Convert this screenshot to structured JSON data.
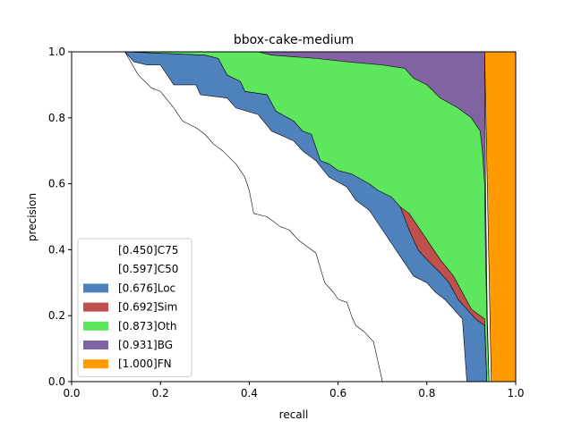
{
  "chart_data": {
    "type": "area",
    "title": "bbox-cake-medium",
    "xlabel": "recall",
    "ylabel": "precision",
    "xlim": [
      0,
      1
    ],
    "ylim": [
      0,
      1
    ],
    "xticks": [
      "0.0",
      "0.2",
      "0.4",
      "0.6",
      "0.8",
      "1.0"
    ],
    "yticks": [
      "0.0",
      "0.2",
      "0.4",
      "0.6",
      "0.8",
      "1.0"
    ],
    "grid": false,
    "legend_position": "lower-left",
    "series": [
      {
        "name": "[1.000]FN",
        "color": "#ff9a00",
        "points": [
          [
            0.93,
            1.0
          ],
          [
            1.0,
            1.0
          ],
          [
            1.0,
            0.0
          ],
          [
            0.945,
            0.0
          ]
        ]
      },
      {
        "name": "[0.931]BG",
        "color": "#8064a2",
        "points": [
          [
            0.12,
            1.0
          ],
          [
            0.93,
            1.0
          ],
          [
            0.932,
            0.6
          ],
          [
            0.936,
            0.2
          ],
          [
            0.94,
            0.0
          ]
        ]
      },
      {
        "name": "[0.873]Oth",
        "color": "#5ee65e",
        "points": [
          [
            0.12,
            1.0
          ],
          [
            0.42,
            1.0
          ],
          [
            0.45,
            0.99
          ],
          [
            0.55,
            0.98
          ],
          [
            0.62,
            0.97
          ],
          [
            0.7,
            0.96
          ],
          [
            0.75,
            0.95
          ],
          [
            0.77,
            0.92
          ],
          [
            0.8,
            0.9
          ],
          [
            0.83,
            0.86
          ],
          [
            0.87,
            0.83
          ],
          [
            0.9,
            0.8
          ],
          [
            0.92,
            0.76
          ],
          [
            0.925,
            0.7
          ],
          [
            0.93,
            0.6
          ],
          [
            0.932,
            0.4
          ],
          [
            0.935,
            0.2
          ],
          [
            0.94,
            0.0
          ]
        ]
      },
      {
        "name": "[0.692]Sim",
        "color": "#c0504d",
        "points": [
          [
            0.12,
            1.0
          ],
          [
            0.3,
            0.99
          ],
          [
            0.33,
            0.98
          ],
          [
            0.35,
            0.93
          ],
          [
            0.38,
            0.91
          ],
          [
            0.39,
            0.88
          ],
          [
            0.44,
            0.87
          ],
          [
            0.46,
            0.82
          ],
          [
            0.5,
            0.79
          ],
          [
            0.52,
            0.76
          ],
          [
            0.54,
            0.74
          ],
          [
            0.55,
            0.7
          ],
          [
            0.56,
            0.67
          ],
          [
            0.58,
            0.65
          ],
          [
            0.6,
            0.63
          ],
          [
            0.63,
            0.62
          ],
          [
            0.67,
            0.59
          ],
          [
            0.69,
            0.57
          ],
          [
            0.73,
            0.54
          ],
          [
            0.76,
            0.51
          ],
          [
            0.78,
            0.47
          ],
          [
            0.8,
            0.43
          ],
          [
            0.83,
            0.37
          ],
          [
            0.86,
            0.32
          ],
          [
            0.88,
            0.27
          ],
          [
            0.9,
            0.22
          ],
          [
            0.93,
            0.19
          ],
          [
            0.935,
            0.0
          ]
        ]
      },
      {
        "name": "[0.676]Loc",
        "color": "#4f81bd",
        "points": [
          [
            0.12,
            1.0
          ],
          [
            0.3,
            0.99
          ],
          [
            0.33,
            0.98
          ],
          [
            0.35,
            0.93
          ],
          [
            0.38,
            0.91
          ],
          [
            0.39,
            0.88
          ],
          [
            0.44,
            0.87
          ],
          [
            0.46,
            0.82
          ],
          [
            0.5,
            0.79
          ],
          [
            0.52,
            0.76
          ],
          [
            0.54,
            0.75
          ],
          [
            0.55,
            0.71
          ],
          [
            0.56,
            0.67
          ],
          [
            0.58,
            0.66
          ],
          [
            0.6,
            0.64
          ],
          [
            0.63,
            0.63
          ],
          [
            0.67,
            0.6
          ],
          [
            0.69,
            0.58
          ],
          [
            0.72,
            0.56
          ],
          [
            0.74,
            0.53
          ],
          [
            0.76,
            0.46
          ],
          [
            0.78,
            0.4
          ],
          [
            0.8,
            0.37
          ],
          [
            0.83,
            0.33
          ],
          [
            0.85,
            0.3
          ],
          [
            0.87,
            0.25
          ],
          [
            0.89,
            0.22
          ],
          [
            0.91,
            0.19
          ],
          [
            0.93,
            0.17
          ],
          [
            0.935,
            0.0
          ]
        ]
      },
      {
        "name": "[0.597]C50",
        "color": "#ffffff",
        "points": [
          [
            0.12,
            1.0
          ],
          [
            0.14,
            0.97
          ],
          [
            0.17,
            0.96
          ],
          [
            0.2,
            0.96
          ],
          [
            0.23,
            0.9
          ],
          [
            0.28,
            0.9
          ],
          [
            0.29,
            0.87
          ],
          [
            0.35,
            0.86
          ],
          [
            0.37,
            0.83
          ],
          [
            0.42,
            0.81
          ],
          [
            0.45,
            0.76
          ],
          [
            0.5,
            0.73
          ],
          [
            0.52,
            0.7
          ],
          [
            0.55,
            0.67
          ],
          [
            0.58,
            0.62
          ],
          [
            0.62,
            0.59
          ],
          [
            0.64,
            0.55
          ],
          [
            0.67,
            0.52
          ],
          [
            0.69,
            0.48
          ],
          [
            0.71,
            0.44
          ],
          [
            0.73,
            0.4
          ],
          [
            0.75,
            0.36
          ],
          [
            0.77,
            0.32
          ],
          [
            0.8,
            0.3
          ],
          [
            0.82,
            0.27
          ],
          [
            0.84,
            0.25
          ],
          [
            0.86,
            0.22
          ],
          [
            0.88,
            0.19
          ],
          [
            0.89,
            0.0
          ]
        ]
      },
      {
        "name": "[0.450]C75",
        "color": "#ffffff",
        "points": [
          [
            0.12,
            1.0
          ],
          [
            0.15,
            0.93
          ],
          [
            0.18,
            0.89
          ],
          [
            0.2,
            0.88
          ],
          [
            0.23,
            0.83
          ],
          [
            0.25,
            0.79
          ],
          [
            0.28,
            0.77
          ],
          [
            0.3,
            0.75
          ],
          [
            0.32,
            0.72
          ],
          [
            0.34,
            0.7
          ],
          [
            0.37,
            0.66
          ],
          [
            0.39,
            0.62
          ],
          [
            0.4,
            0.58
          ],
          [
            0.41,
            0.51
          ],
          [
            0.44,
            0.5
          ],
          [
            0.47,
            0.47
          ],
          [
            0.49,
            0.46
          ],
          [
            0.51,
            0.43
          ],
          [
            0.53,
            0.41
          ],
          [
            0.55,
            0.39
          ],
          [
            0.57,
            0.3
          ],
          [
            0.59,
            0.27
          ],
          [
            0.6,
            0.25
          ],
          [
            0.62,
            0.24
          ],
          [
            0.63,
            0.2
          ],
          [
            0.64,
            0.17
          ],
          [
            0.66,
            0.15
          ],
          [
            0.68,
            0.12
          ],
          [
            0.69,
            0.06
          ],
          [
            0.7,
            0.0
          ]
        ]
      }
    ],
    "legend": [
      {
        "label": "[0.450]C75",
        "color": "#ffffff"
      },
      {
        "label": "[0.597]C50",
        "color": "#ffffff"
      },
      {
        "label": "[0.676]Loc",
        "color": "#4f81bd"
      },
      {
        "label": "[0.692]Sim",
        "color": "#c0504d"
      },
      {
        "label": "[0.873]Oth",
        "color": "#5ee65e"
      },
      {
        "label": "[0.931]BG",
        "color": "#8064a2"
      },
      {
        "label": "[1.000]FN",
        "color": "#ff9a00"
      }
    ]
  }
}
